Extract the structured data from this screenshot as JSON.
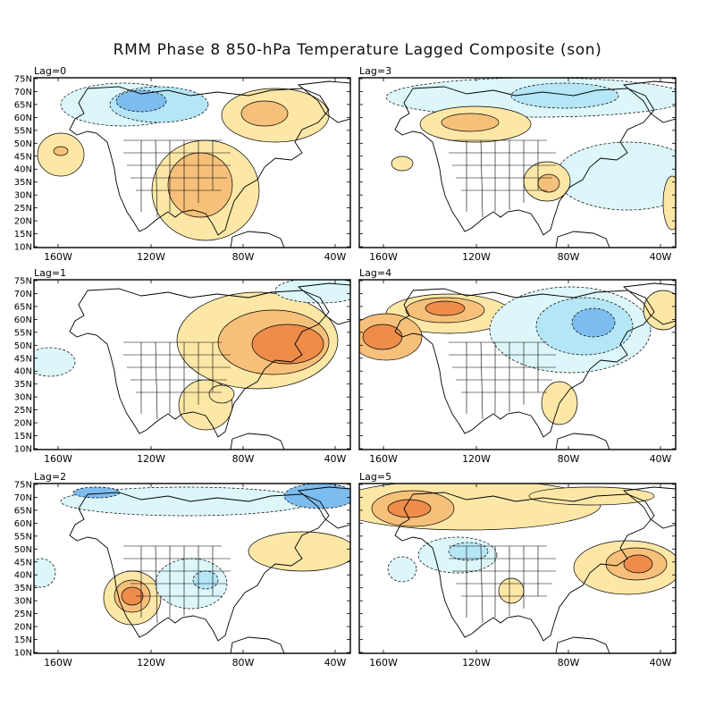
{
  "title": "RMM Phase 8 850-hPa Temperature Lagged Composite (son)",
  "colors": {
    "warm1": "#fde7a6",
    "warm2": "#f7c07a",
    "warm3": "#ee8c4a",
    "cool1": "#dcf6fa",
    "cool2": "#b5e6f6",
    "cool3": "#7dbcef",
    "cool4": "#5d9fe7",
    "land": "#ffffff",
    "line": "#000000"
  },
  "lat_labels": [
    "75N",
    "70N",
    "65N",
    "60N",
    "55N",
    "50N",
    "45N",
    "40N",
    "35N",
    "30N",
    "25N",
    "20N",
    "15N",
    "10N"
  ],
  "lon_labels": [
    "160W",
    "120W",
    "80W",
    "40W"
  ],
  "panels": [
    {
      "label": "Lag=0"
    },
    {
      "label": "Lag=3"
    },
    {
      "label": "Lag=1"
    },
    {
      "label": "Lag=4"
    },
    {
      "label": "Lag=2"
    },
    {
      "label": "Lag=5"
    }
  ]
}
